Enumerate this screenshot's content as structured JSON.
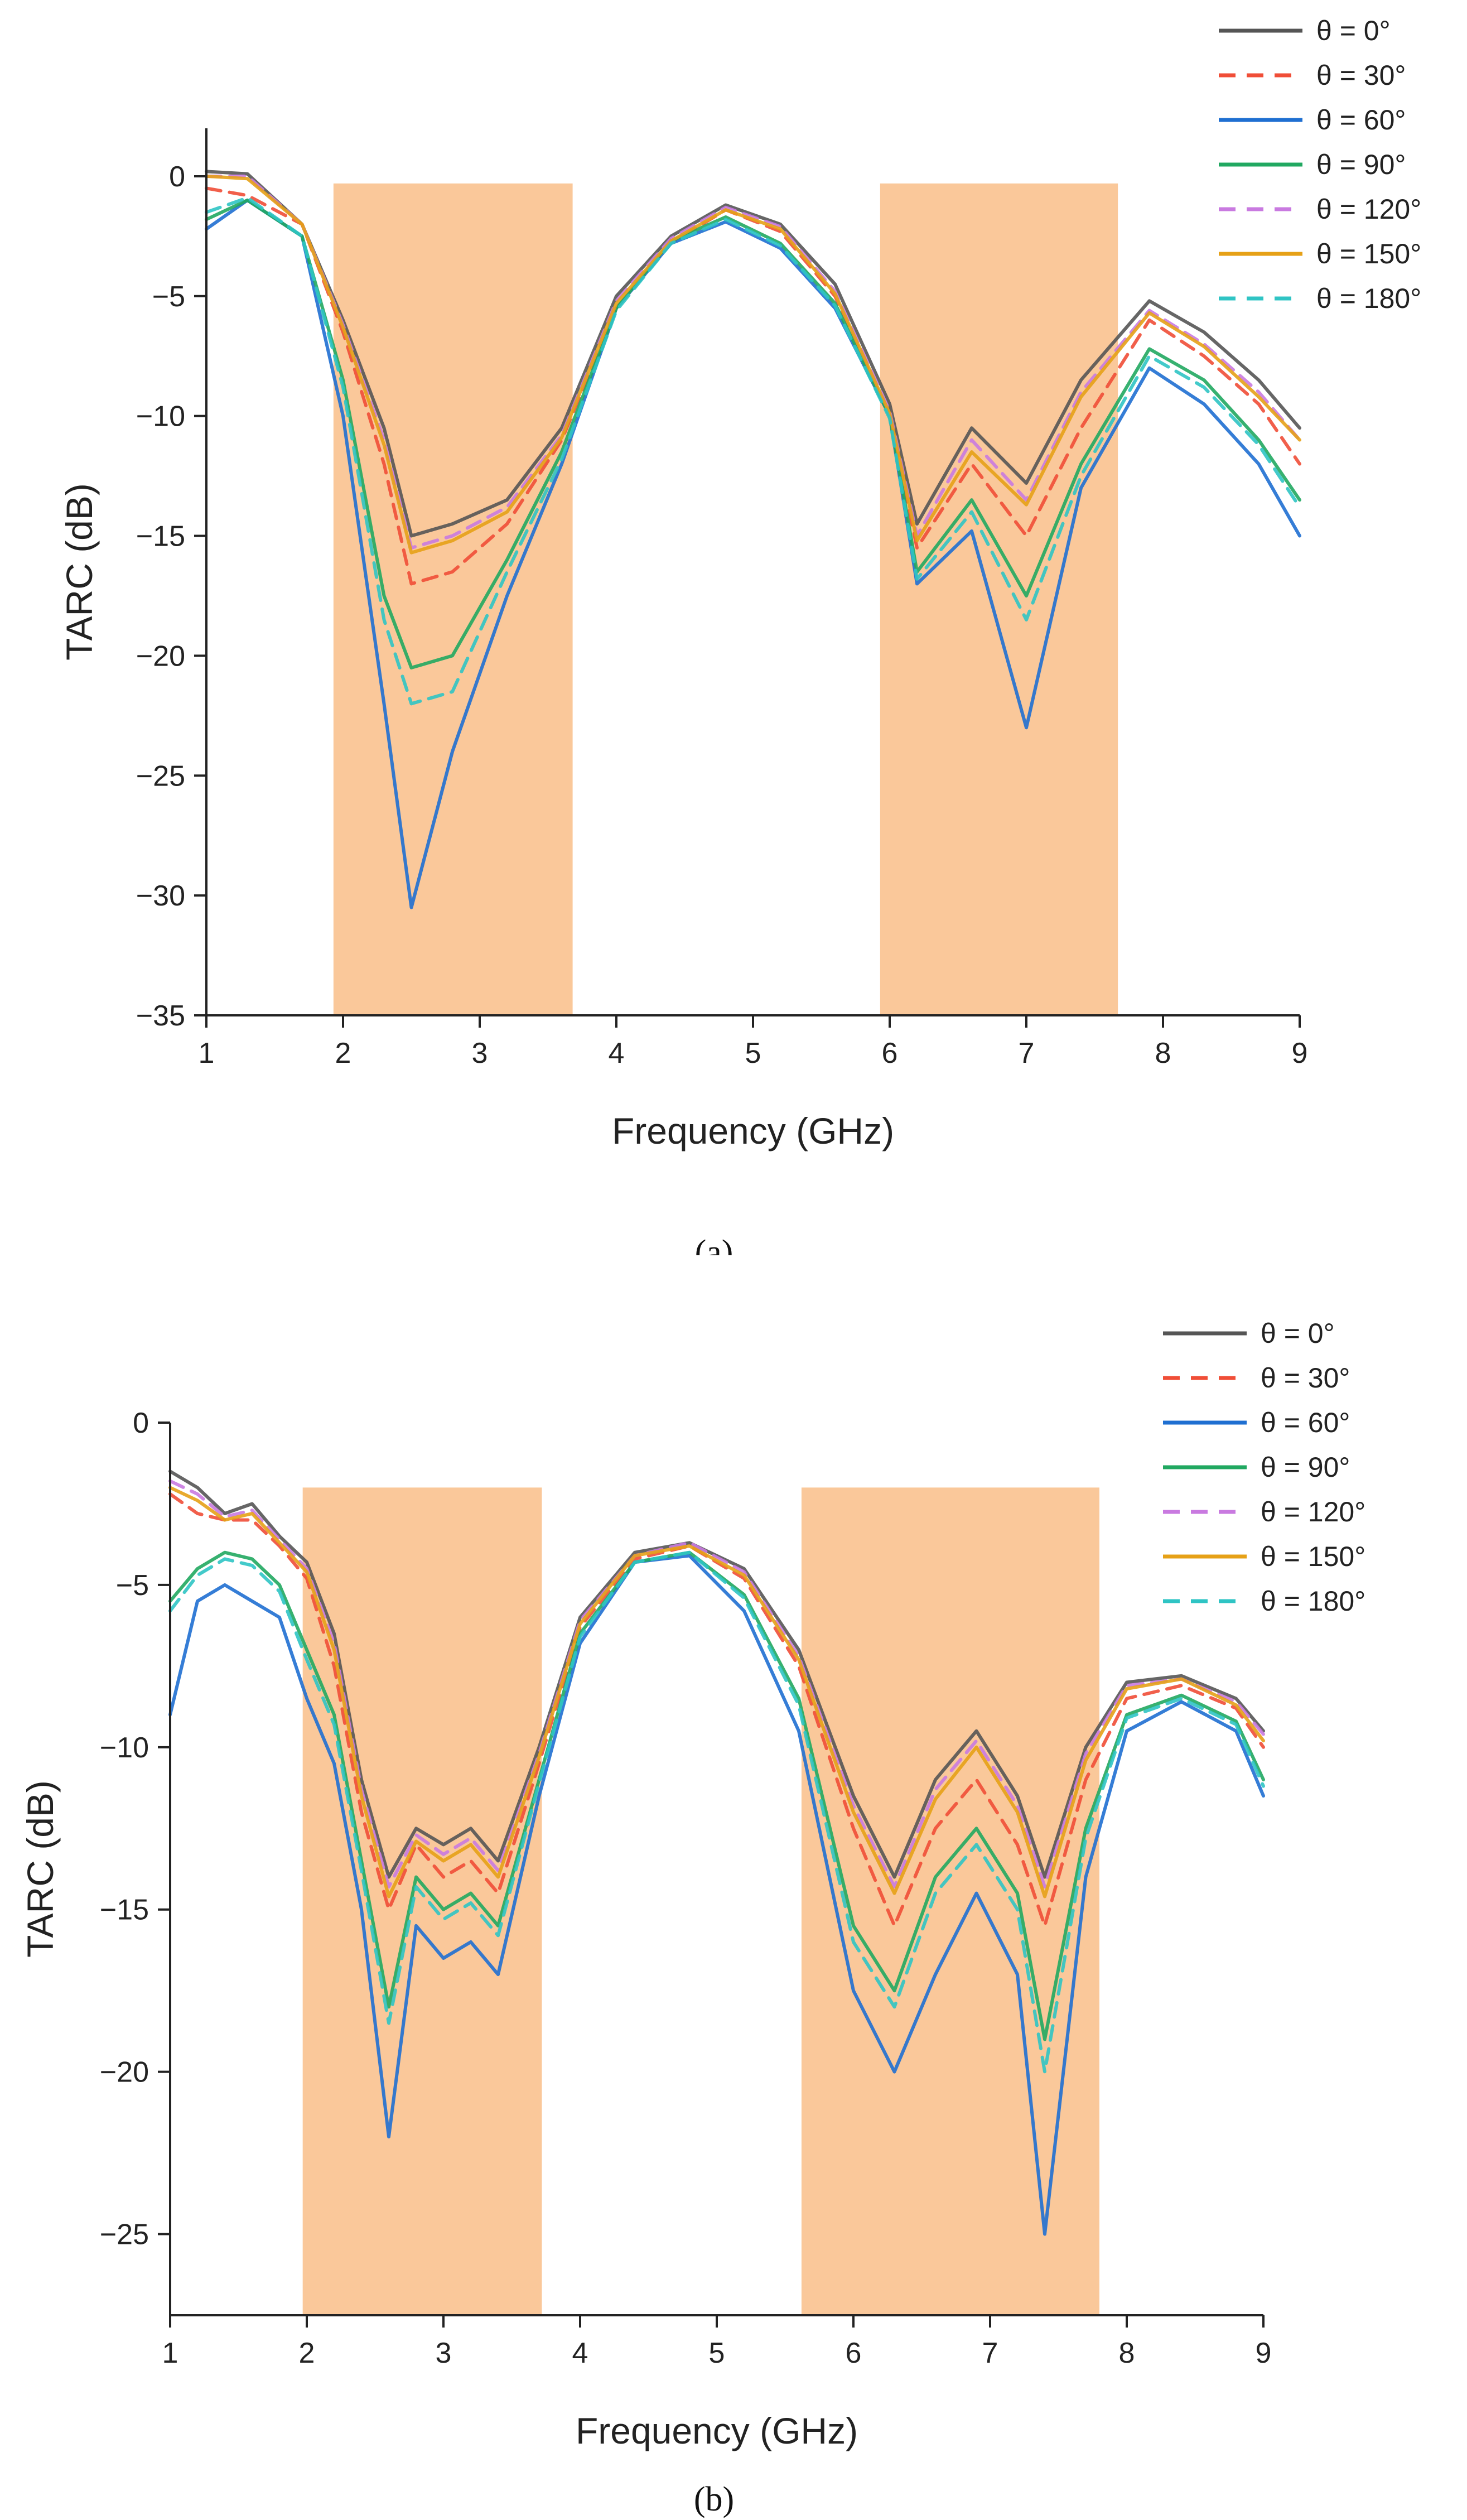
{
  "chart_data": [
    {
      "type": "line",
      "panel": "a",
      "caption": "(a)",
      "xlabel": "Frequency (GHz)",
      "ylabel": "TARC (dB)",
      "xlim": [
        1,
        9
      ],
      "ylim": [
        -35,
        2
      ],
      "xticks": [
        1,
        2,
        3,
        4,
        5,
        6,
        7,
        8,
        9
      ],
      "yticks": [
        0,
        -5,
        -10,
        -15,
        -20,
        -25,
        -30,
        -35
      ],
      "ytick_labels": [
        "0",
        "−5",
        "−10",
        "−15",
        "−20",
        "−25",
        "−30",
        "−35"
      ],
      "bands": [
        [
          1.93,
          3.68
        ],
        [
          5.93,
          7.67
        ]
      ],
      "band_top": -0.3,
      "band_color": "#fac89a",
      "x": [
        1,
        1.3,
        1.7,
        2.0,
        2.3,
        2.5,
        2.8,
        3.2,
        3.6,
        4.0,
        4.4,
        4.8,
        5.2,
        5.6,
        6.0,
        6.2,
        6.6,
        7.0,
        7.4,
        7.9,
        8.3,
        8.7,
        9.0
      ],
      "series": [
        {
          "name": "θ = 0°",
          "color": "#555555",
          "dash": false,
          "values": [
            0.2,
            0.1,
            -2.0,
            -6.0,
            -10.5,
            -15.0,
            -14.5,
            -13.5,
            -10.5,
            -5.0,
            -2.5,
            -1.2,
            -2.0,
            -4.5,
            -9.5,
            -14.5,
            -10.5,
            -12.8,
            -8.5,
            -5.2,
            -6.5,
            -8.5,
            -10.5
          ]
        },
        {
          "name": "θ = 30°",
          "color": "#f04e37",
          "dash": true,
          "values": [
            -0.5,
            -0.8,
            -2.0,
            -6.5,
            -12.0,
            -17.0,
            -16.5,
            -14.5,
            -11.0,
            -5.5,
            -2.8,
            -1.4,
            -2.3,
            -5.0,
            -10.0,
            -15.5,
            -12.0,
            -15.0,
            -10.5,
            -6.0,
            -7.5,
            -9.5,
            -12.0
          ]
        },
        {
          "name": "θ = 60°",
          "color": "#1f6fd1",
          "dash": false,
          "values": [
            -2.2,
            -1.0,
            -2.5,
            -10.0,
            -22.0,
            -30.5,
            -24.0,
            -17.5,
            -12.0,
            -5.5,
            -2.8,
            -1.9,
            -3.0,
            -5.5,
            -10.0,
            -17.0,
            -14.8,
            -23.0,
            -13.0,
            -8.0,
            -9.5,
            -12.0,
            -15.0
          ]
        },
        {
          "name": "θ = 90°",
          "color": "#21a861",
          "dash": false,
          "values": [
            -1.8,
            -1.0,
            -2.5,
            -8.5,
            -17.5,
            -20.5,
            -20.0,
            -16.0,
            -11.5,
            -5.5,
            -2.7,
            -1.7,
            -2.8,
            -5.3,
            -10.0,
            -16.5,
            -13.5,
            -17.5,
            -12.0,
            -7.2,
            -8.5,
            -11.0,
            -13.5
          ]
        },
        {
          "name": "θ = 120°",
          "color": "#c97ae0",
          "dash": true,
          "values": [
            0.0,
            0.0,
            -2.0,
            -6.2,
            -11.0,
            -15.5,
            -15.0,
            -13.8,
            -10.8,
            -5.2,
            -2.6,
            -1.3,
            -2.1,
            -4.8,
            -9.8,
            -15.0,
            -11.0,
            -13.5,
            -9.0,
            -5.6,
            -7.0,
            -9.0,
            -11.0
          ]
        },
        {
          "name": "θ = 150°",
          "color": "#e6a117",
          "dash": false,
          "values": [
            0.0,
            -0.1,
            -2.0,
            -6.3,
            -11.2,
            -15.7,
            -15.2,
            -14.0,
            -10.9,
            -5.3,
            -2.7,
            -1.4,
            -2.2,
            -4.9,
            -9.9,
            -15.2,
            -11.5,
            -13.7,
            -9.2,
            -5.7,
            -7.1,
            -9.2,
            -11.0
          ]
        },
        {
          "name": "θ = 180°",
          "color": "#2fc4c4",
          "dash": true,
          "values": [
            -1.5,
            -0.9,
            -2.5,
            -8.8,
            -18.5,
            -22.0,
            -21.5,
            -16.5,
            -11.8,
            -5.6,
            -2.8,
            -1.8,
            -2.9,
            -5.4,
            -10.1,
            -16.8,
            -14.0,
            -18.5,
            -12.5,
            -7.5,
            -8.8,
            -11.2,
            -13.8
          ]
        }
      ]
    },
    {
      "type": "line",
      "panel": "b",
      "caption": "(b)",
      "xlabel": "Frequency (GHz)",
      "ylabel": "TARC (dB)",
      "xlim": [
        1,
        9
      ],
      "ylim": [
        -27.5,
        0
      ],
      "xticks": [
        1,
        2,
        3,
        4,
        5,
        6,
        7,
        8,
        9
      ],
      "yticks": [
        0,
        -5,
        -10,
        -15,
        -20,
        -25
      ],
      "ytick_labels": [
        "0",
        "−5",
        "−10",
        "−15",
        "−20",
        "−25"
      ],
      "bands": [
        [
          1.97,
          3.72
        ],
        [
          5.62,
          7.8
        ]
      ],
      "band_top": -2.0,
      "band_color": "#fac89a",
      "x": [
        1,
        1.2,
        1.4,
        1.6,
        1.8,
        2.0,
        2.2,
        2.4,
        2.6,
        2.8,
        3.0,
        3.2,
        3.4,
        3.7,
        4.0,
        4.4,
        4.8,
        5.2,
        5.6,
        6.0,
        6.3,
        6.6,
        6.9,
        7.2,
        7.4,
        7.7,
        8.0,
        8.4,
        8.8,
        9.0
      ],
      "series": [
        {
          "name": "θ = 0°",
          "color": "#555555",
          "dash": false,
          "values": [
            -1.5,
            -2.0,
            -2.8,
            -2.5,
            -3.5,
            -4.3,
            -6.5,
            -11.0,
            -14.0,
            -12.5,
            -13.0,
            -12.5,
            -13.5,
            -10.0,
            -6.0,
            -4.0,
            -3.7,
            -4.5,
            -7.0,
            -11.5,
            -14.0,
            -11.0,
            -9.5,
            -11.5,
            -14.0,
            -10.0,
            -8.0,
            -7.8,
            -8.5,
            -9.5
          ]
        },
        {
          "name": "θ = 30°",
          "color": "#f04e37",
          "dash": true,
          "values": [
            -2.2,
            -2.8,
            -3.0,
            -3.0,
            -3.8,
            -4.8,
            -7.5,
            -12.0,
            -15.0,
            -13.0,
            -14.0,
            -13.5,
            -14.5,
            -10.5,
            -6.3,
            -4.2,
            -3.8,
            -4.8,
            -7.5,
            -12.5,
            -15.5,
            -12.5,
            -11.0,
            -13.0,
            -15.5,
            -11.0,
            -8.5,
            -8.1,
            -8.8,
            -10.0
          ]
        },
        {
          "name": "θ = 60°",
          "color": "#1f6fd1",
          "dash": false,
          "values": [
            -9.0,
            -5.5,
            -5.0,
            -5.5,
            -6.0,
            -8.5,
            -10.5,
            -15.0,
            -22.0,
            -15.5,
            -16.5,
            -16.0,
            -17.0,
            -11.5,
            -6.8,
            -4.3,
            -4.1,
            -5.8,
            -9.5,
            -17.5,
            -20.0,
            -17.0,
            -14.5,
            -17.0,
            -25.0,
            -14.0,
            -9.5,
            -8.6,
            -9.5,
            -11.5
          ]
        },
        {
          "name": "θ = 90°",
          "color": "#21a861",
          "dash": false,
          "values": [
            -5.5,
            -4.5,
            -4.0,
            -4.2,
            -5.0,
            -7.0,
            -9.0,
            -13.5,
            -18.0,
            -14.0,
            -15.0,
            -14.5,
            -15.5,
            -11.0,
            -6.5,
            -4.3,
            -4.0,
            -5.3,
            -8.5,
            -15.5,
            -17.5,
            -14.0,
            -12.5,
            -14.5,
            -19.0,
            -12.5,
            -9.0,
            -8.4,
            -9.2,
            -11.0
          ]
        },
        {
          "name": "θ = 120°",
          "color": "#c97ae0",
          "dash": true,
          "values": [
            -1.8,
            -2.2,
            -2.9,
            -2.7,
            -3.6,
            -4.5,
            -6.8,
            -11.3,
            -14.3,
            -12.7,
            -13.3,
            -12.8,
            -13.8,
            -10.2,
            -6.1,
            -4.1,
            -3.7,
            -4.6,
            -7.2,
            -11.8,
            -14.3,
            -11.3,
            -9.8,
            -11.8,
            -14.3,
            -10.2,
            -8.1,
            -7.9,
            -8.6,
            -9.6
          ]
        },
        {
          "name": "θ = 150°",
          "color": "#e6a117",
          "dash": false,
          "values": [
            -2.0,
            -2.4,
            -3.0,
            -2.8,
            -3.7,
            -4.6,
            -7.0,
            -11.5,
            -14.6,
            -12.9,
            -13.5,
            -13.0,
            -14.0,
            -10.3,
            -6.2,
            -4.1,
            -3.8,
            -4.7,
            -7.3,
            -12.0,
            -14.5,
            -11.6,
            -10.0,
            -12.0,
            -14.6,
            -10.4,
            -8.2,
            -7.9,
            -8.7,
            -9.8
          ]
        },
        {
          "name": "θ = 180°",
          "color": "#2fc4c4",
          "dash": true,
          "values": [
            -5.8,
            -4.7,
            -4.2,
            -4.4,
            -5.2,
            -7.3,
            -9.3,
            -13.8,
            -18.5,
            -14.3,
            -15.3,
            -14.8,
            -15.8,
            -11.1,
            -6.6,
            -4.3,
            -4.0,
            -5.4,
            -8.7,
            -16.0,
            -18.0,
            -14.5,
            -13.0,
            -15.0,
            -20.0,
            -12.8,
            -9.1,
            -8.5,
            -9.3,
            -11.2
          ]
        }
      ]
    }
  ]
}
